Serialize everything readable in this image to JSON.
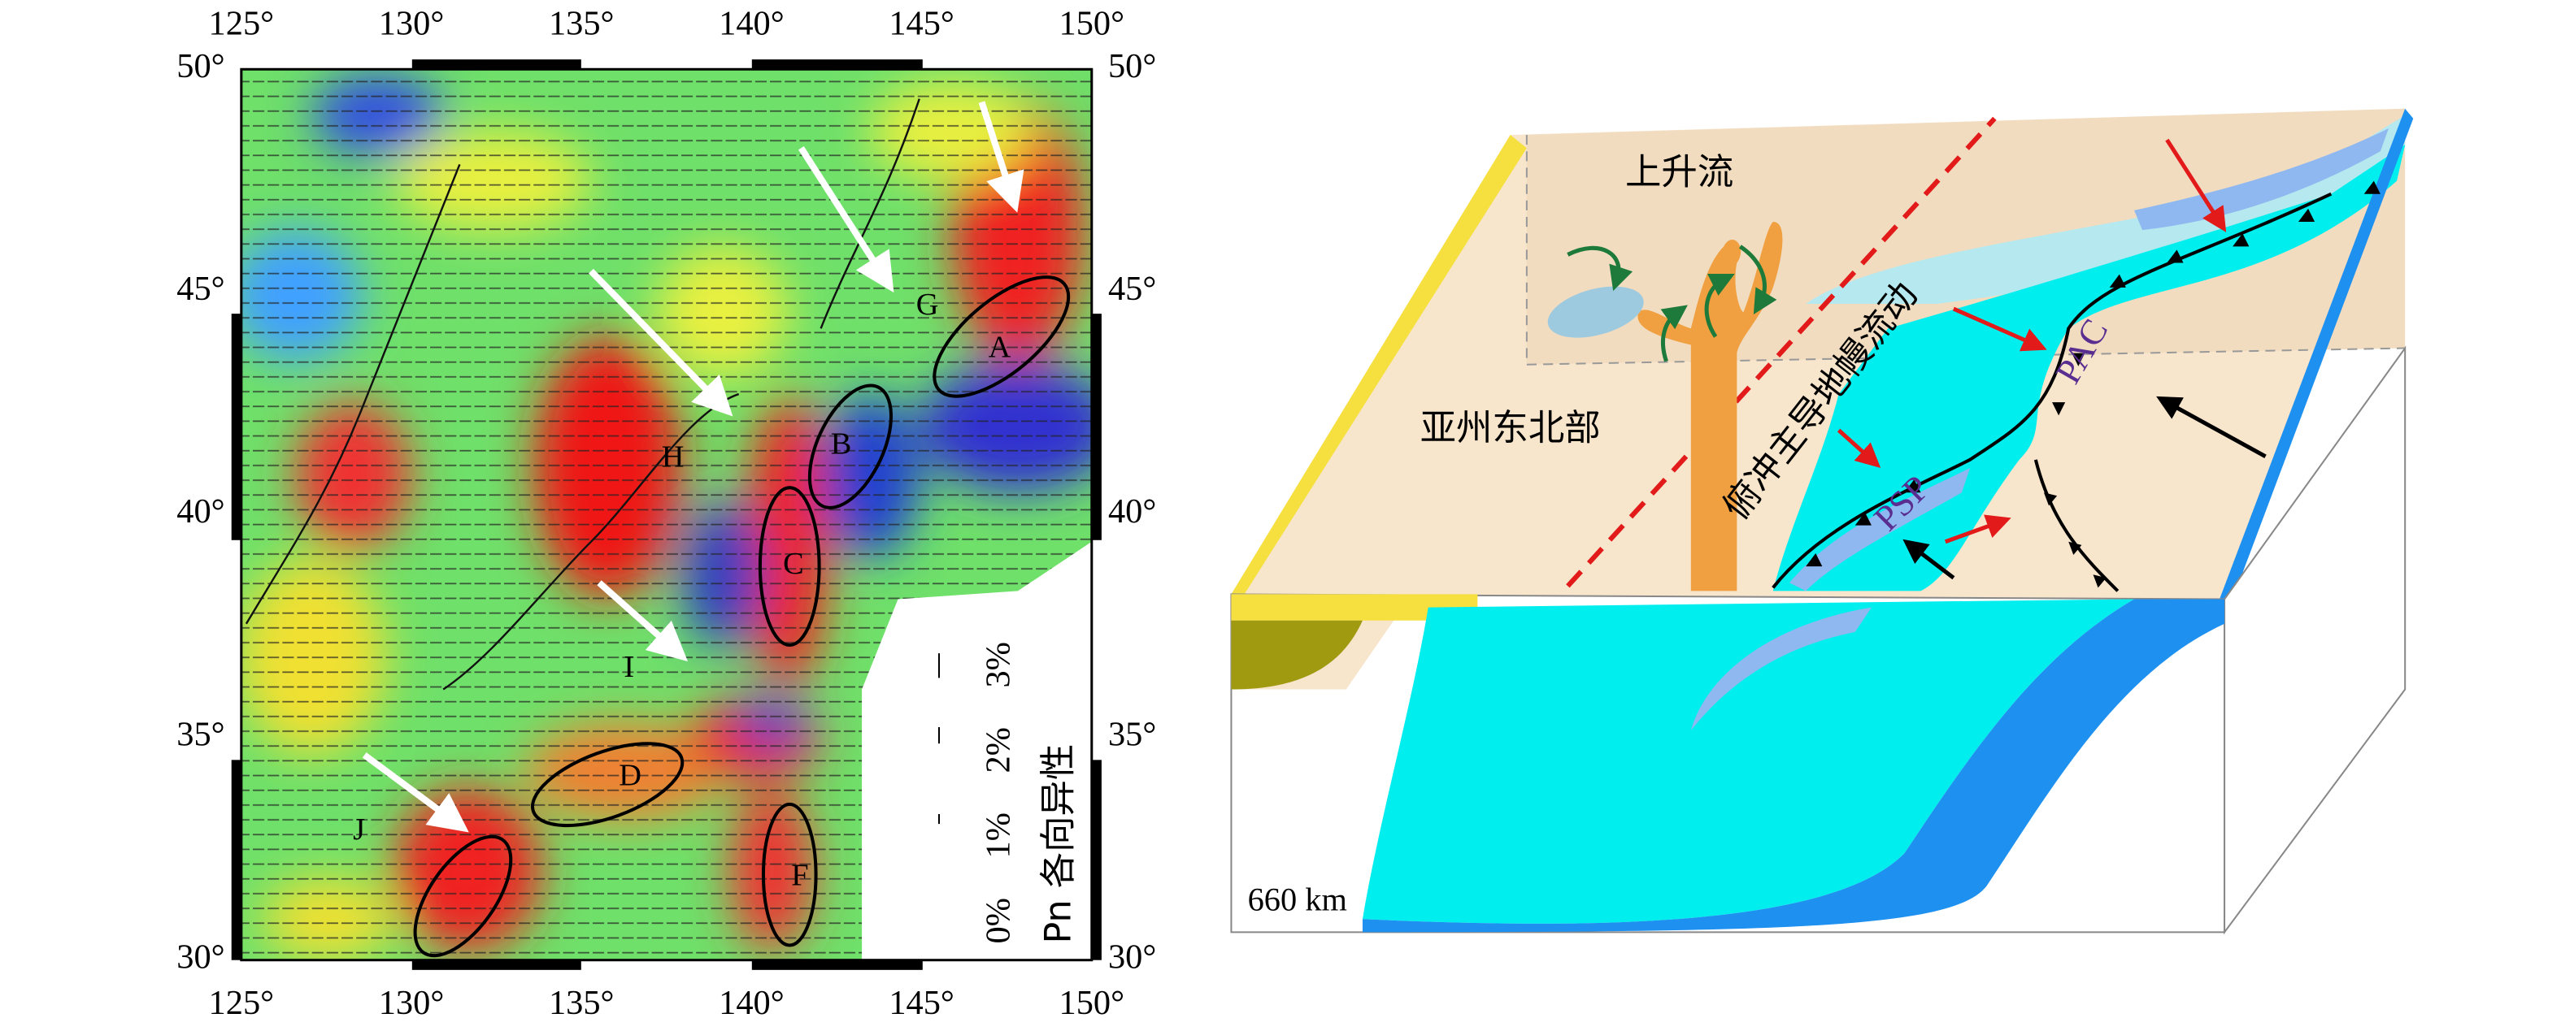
{
  "map": {
    "lon_labels": [
      "125°",
      "130°",
      "135°",
      "140°",
      "145°",
      "150°"
    ],
    "lat_labels": [
      "50°",
      "45°",
      "40°",
      "35°",
      "30°"
    ],
    "region_labels": [
      "A",
      "B",
      "C",
      "D",
      "F",
      "G",
      "H",
      "I",
      "J"
    ],
    "legend": {
      "scale_labels": [
        "0%",
        "1%",
        "2%",
        "3%"
      ],
      "title": "Pn 各向异性"
    }
  },
  "diagram": {
    "upwelling": "上升流",
    "region": "亚州东北部",
    "flow": "俯冲主导地幔流动",
    "pac": "PAC",
    "psp": "PSP",
    "depth": "660 km"
  }
}
